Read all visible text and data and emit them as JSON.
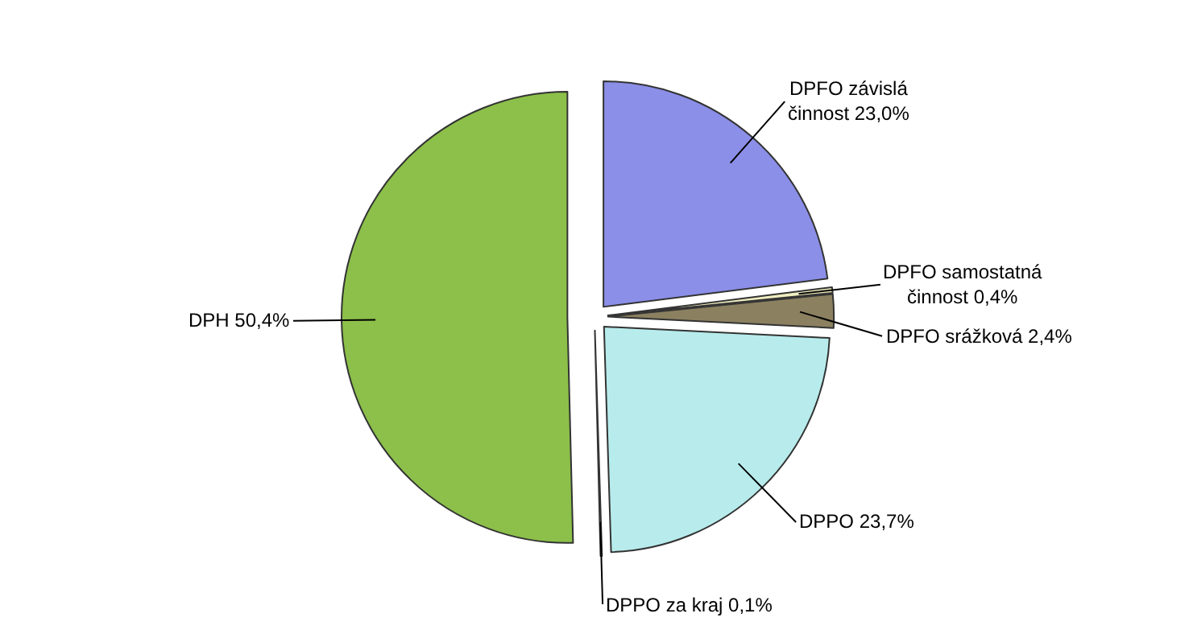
{
  "chart_data": {
    "type": "pie",
    "categories": [
      "DPFO závislá činnost",
      "DPFO samostatná činnost",
      "DPFO srážková",
      "DPPO",
      "DPPO za kraj",
      "DPH"
    ],
    "values": [
      23.0,
      0.4,
      2.4,
      23.7,
      0.1,
      50.4
    ],
    "value_labels": [
      "23,0%",
      "0,4%",
      "2,4%",
      "23,7%",
      "0,1%",
      "50,4%"
    ],
    "colors": [
      "#8b8fe8",
      "#f0eec0",
      "#8b8060",
      "#b8ecec",
      "#3a0a30",
      "#8cc04a"
    ],
    "legend": false
  }
}
